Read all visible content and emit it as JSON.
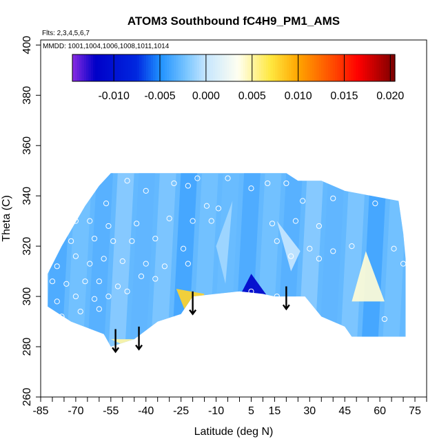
{
  "chart_data": {
    "type": "heatmap",
    "title": "ATOM3 Southbound fC4H9_PM1_AMS",
    "flights_label": "Flts: 2,3,4,5,6,7",
    "mmdd_label": "MMDD: 1001,1004,1006,1008,1011,1014",
    "xlabel": "Latitude (deg N)",
    "ylabel": "Theta (C)",
    "xlim": [
      -85,
      80
    ],
    "ylim": [
      260,
      402
    ],
    "x_tick_labels": [
      "-85",
      "-70",
      "-55",
      "-40",
      "-25",
      "-10",
      "5",
      "15",
      "30",
      "45",
      "60",
      "75"
    ],
    "x_tick_values": [
      -85,
      -70,
      -55,
      -40,
      -25,
      -10,
      5,
      15,
      30,
      45,
      60,
      75
    ],
    "x_minor_ticks": [
      -80,
      -75,
      -65,
      -60,
      -50,
      -45,
      -35,
      -30,
      -20,
      -15,
      -5,
      0,
      10,
      20,
      25,
      35,
      40,
      50,
      55,
      65,
      70,
      80
    ],
    "y_ticks": [
      260,
      280,
      300,
      320,
      340,
      360,
      380,
      400
    ],
    "colorbar": {
      "min": -0.0145,
      "max": 0.0205,
      "tick_values": [
        -0.01,
        -0.005,
        0,
        0.005,
        0.01,
        0.015,
        0.02
      ],
      "tick_labels": [
        "-0.010",
        "-0.005",
        "0.000",
        "0.005",
        "0.010",
        "0.015",
        "0.020"
      ],
      "stops": [
        {
          "v": -0.0145,
          "c": "#8a2be2"
        },
        {
          "v": -0.012,
          "c": "#0000c8"
        },
        {
          "v": -0.0075,
          "c": "#0028e0"
        },
        {
          "v": -0.005,
          "c": "#1e90ff"
        },
        {
          "v": -0.002,
          "c": "#7ec8ff"
        },
        {
          "v": 0.0,
          "c": "#c6e6ff"
        },
        {
          "v": 0.0035,
          "c": "#fffff0"
        },
        {
          "v": 0.007,
          "c": "#ffe840"
        },
        {
          "v": 0.01,
          "c": "#ffa500"
        },
        {
          "v": 0.014,
          "c": "#ff4500"
        },
        {
          "v": 0.0165,
          "c": "#ff0000"
        },
        {
          "v": 0.0205,
          "c": "#7a0000"
        }
      ]
    },
    "base_value": -0.0028,
    "anomalies": [
      {
        "name": "yellow-patch",
        "points": [
          [
            -27,
            303
          ],
          [
            -15,
            301
          ],
          [
            -21,
            289
          ]
        ],
        "value": 0.008
      },
      {
        "name": "dark-blue-patch",
        "points": [
          [
            5,
            309
          ],
          [
            0,
            300
          ],
          [
            12,
            300
          ]
        ],
        "value": -0.0115
      },
      {
        "name": "right-yellow-patch",
        "points": [
          [
            54,
            318
          ],
          [
            48,
            298
          ],
          [
            62,
            298
          ]
        ],
        "value": 0.004
      },
      {
        "name": "small-yellow-patch",
        "points": [
          [
            -55,
            283
          ],
          [
            -40,
            283
          ],
          [
            -48,
            280
          ]
        ],
        "value": 0.005
      },
      {
        "name": "light-band-1",
        "points": [
          [
            -3,
            338
          ],
          [
            -10,
            320
          ],
          [
            -6,
            305
          ]
        ],
        "value": -0.001
      },
      {
        "name": "light-band-2",
        "points": [
          [
            16,
            330
          ],
          [
            22,
            310
          ],
          [
            26,
            318
          ]
        ],
        "value": 0.0
      }
    ],
    "data_region": {
      "top_x": [
        -55,
        20
      ],
      "top_theta": 349,
      "outline": [
        [
          -55,
          349
        ],
        [
          20,
          349
        ],
        [
          25,
          346
        ],
        [
          35,
          346
        ],
        [
          45,
          342
        ],
        [
          68,
          338
        ],
        [
          70,
          325
        ],
        [
          71,
          315
        ],
        [
          71,
          284
        ],
        [
          48,
          284
        ],
        [
          45,
          288
        ],
        [
          35,
          292
        ],
        [
          28,
          300
        ],
        [
          15,
          300
        ],
        [
          10,
          301
        ],
        [
          0,
          302
        ],
        [
          -10,
          301
        ],
        [
          -20,
          300
        ],
        [
          -25,
          293
        ],
        [
          -35,
          290
        ],
        [
          -45,
          283
        ],
        [
          -55,
          280
        ],
        [
          -58,
          285
        ],
        [
          -72,
          290
        ],
        [
          -82,
          296
        ],
        [
          -82,
          309
        ],
        [
          -76,
          320
        ],
        [
          -66,
          336
        ],
        [
          -60,
          344
        ]
      ]
    },
    "obs_points": [
      [
        -60,
        347
      ],
      [
        -48,
        346
      ],
      [
        -28,
        345
      ],
      [
        -18,
        347
      ],
      [
        -5,
        347
      ],
      [
        12,
        345
      ],
      [
        20,
        345
      ],
      [
        -57,
        337
      ],
      [
        -40,
        342
      ],
      [
        -22,
        344
      ],
      [
        -14,
        336
      ],
      [
        -9,
        335
      ],
      [
        5,
        343
      ],
      [
        27,
        338
      ],
      [
        40,
        339
      ],
      [
        58,
        337
      ],
      [
        -70,
        330
      ],
      [
        -64,
        330
      ],
      [
        -56,
        328
      ],
      [
        -44,
        329
      ],
      [
        -30,
        331
      ],
      [
        -20,
        330
      ],
      [
        -12,
        330
      ],
      [
        14,
        329
      ],
      [
        24,
        330
      ],
      [
        34,
        328
      ],
      [
        -72,
        322
      ],
      [
        -62,
        323
      ],
      [
        -54,
        322
      ],
      [
        -46,
        322
      ],
      [
        -36,
        323
      ],
      [
        -24,
        319
      ],
      [
        16,
        322
      ],
      [
        30,
        319
      ],
      [
        40,
        318
      ],
      [
        48,
        320
      ],
      [
        -78,
        312
      ],
      [
        -70,
        316
      ],
      [
        -64,
        313
      ],
      [
        -58,
        315
      ],
      [
        -50,
        314
      ],
      [
        -40,
        313
      ],
      [
        -32,
        312
      ],
      [
        -22,
        313
      ],
      [
        22,
        316
      ],
      [
        34,
        315
      ],
      [
        -80,
        306
      ],
      [
        -74,
        305
      ],
      [
        -66,
        306
      ],
      [
        -60,
        306
      ],
      [
        -52,
        304
      ],
      [
        -42,
        308
      ],
      [
        -36,
        307
      ],
      [
        -78,
        298
      ],
      [
        -70,
        300
      ],
      [
        -62,
        299
      ],
      [
        -56,
        300
      ],
      [
        -48,
        302
      ],
      [
        -76,
        292
      ],
      [
        -68,
        294
      ],
      [
        -60,
        295
      ],
      [
        5,
        302
      ],
      [
        16,
        300
      ],
      [
        28,
        290
      ],
      [
        38,
        287
      ],
      [
        45,
        286
      ],
      [
        62,
        291
      ],
      [
        70,
        313
      ],
      [
        66,
        319
      ]
    ],
    "arrows": [
      {
        "x": -53,
        "theta": 281
      },
      {
        "x": -43,
        "theta": 282
      },
      {
        "x": -20,
        "theta": 296
      },
      {
        "x": 20,
        "theta": 298
      }
    ]
  }
}
